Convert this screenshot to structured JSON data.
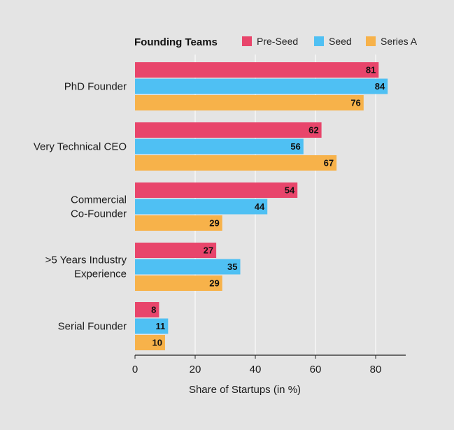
{
  "chart_data": {
    "type": "bar",
    "orientation": "horizontal",
    "legend_title": "Founding Teams",
    "legend_position": "top",
    "categories": [
      [
        "PhD Founder"
      ],
      [
        "Very Technical CEO"
      ],
      [
        "Commercial",
        "Co-Founder"
      ],
      [
        ">5 Years Industry",
        "Experience"
      ],
      [
        "Serial Founder"
      ]
    ],
    "series": [
      {
        "name": "Pre-Seed",
        "color": "#e8456b",
        "values": [
          81,
          62,
          54,
          27,
          8
        ]
      },
      {
        "name": "Seed",
        "color": "#4fc0f3",
        "values": [
          84,
          56,
          44,
          35,
          11
        ]
      },
      {
        "name": "Series A",
        "color": "#f7b24a",
        "values": [
          76,
          67,
          29,
          29,
          10
        ]
      }
    ],
    "xlabel": "Share of Startups (in %)",
    "ylabel": "",
    "xlim": [
      0,
      90
    ],
    "xticks": [
      0,
      20,
      40,
      60,
      80
    ],
    "grid": "vertical",
    "background_color": "#e4e4e4"
  }
}
